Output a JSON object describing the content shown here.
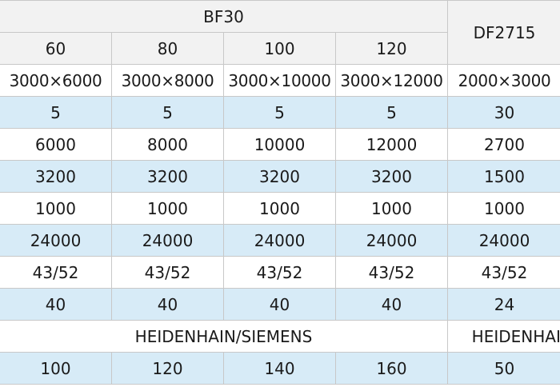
{
  "header": {
    "group_bf30": "BF30",
    "group_df2715": "DF2715",
    "sub": [
      "60",
      "80",
      "100",
      "120"
    ]
  },
  "rows": [
    {
      "style": "white",
      "cells": [
        "3000×6000",
        "3000×8000",
        "3000×10000",
        "3000×12000",
        "2000×3000"
      ]
    },
    {
      "style": "blue",
      "cells": [
        "5",
        "5",
        "5",
        "5",
        "30"
      ]
    },
    {
      "style": "white",
      "cells": [
        "6000",
        "8000",
        "10000",
        "12000",
        "2700"
      ]
    },
    {
      "style": "blue",
      "cells": [
        "3200",
        "3200",
        "3200",
        "3200",
        "1500"
      ]
    },
    {
      "style": "white",
      "cells": [
        "1000",
        "1000",
        "1000",
        "1000",
        "1000"
      ]
    },
    {
      "style": "blue",
      "cells": [
        "24000",
        "24000",
        "24000",
        "24000",
        "24000"
      ]
    },
    {
      "style": "white",
      "cells": [
        "43/52",
        "43/52",
        "43/52",
        "43/52",
        "43/52"
      ]
    },
    {
      "style": "blue",
      "cells": [
        "40",
        "40",
        "40",
        "40",
        "24"
      ]
    }
  ],
  "control_row": {
    "bf30": "HEIDENHAIN/SIEMENS",
    "df2715": "HEIDENHAIN/SIEMENS"
  },
  "last_row": [
    "100",
    "120",
    "140",
    "160",
    "50"
  ]
}
